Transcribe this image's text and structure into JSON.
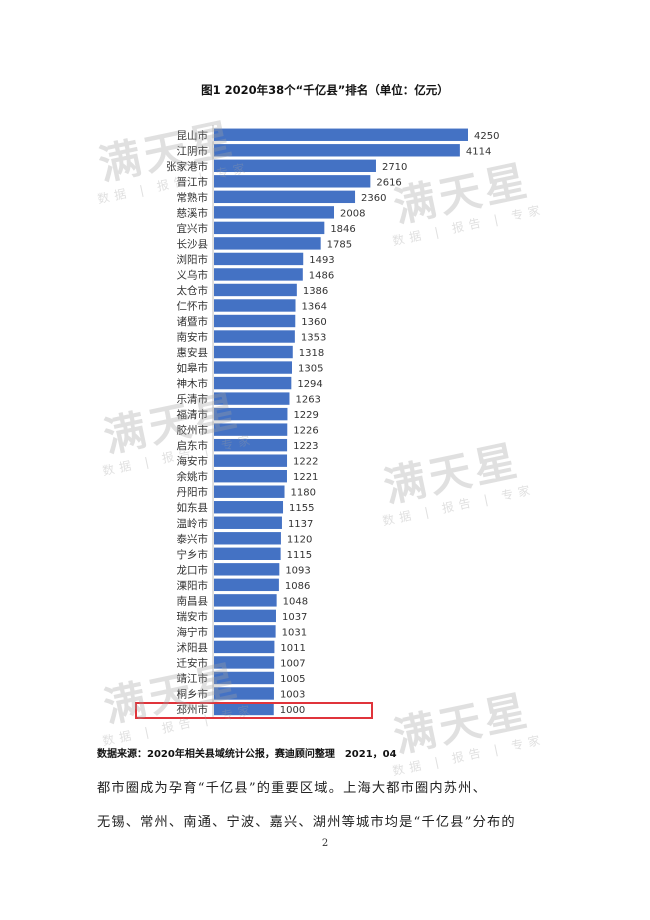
{
  "chart_data": {
    "type": "bar",
    "orientation": "horizontal",
    "title": "图1 2020年38个“千亿县”排名（单位：亿元）",
    "categories": [
      "昆山市",
      "江阴市",
      "张家港市",
      "晋江市",
      "常熟市",
      "慈溪市",
      "宜兴市",
      "长沙县",
      "浏阳市",
      "义乌市",
      "太仓市",
      "仁怀市",
      "诸暨市",
      "南安市",
      "惠安县",
      "如皋市",
      "神木市",
      "乐清市",
      "福清市",
      "胶州市",
      "启东市",
      "海安市",
      "余姚市",
      "丹阳市",
      "如东县",
      "温岭市",
      "泰兴市",
      "宁乡市",
      "龙口市",
      "溧阳市",
      "南昌县",
      "瑞安市",
      "海宁市",
      "沭阳县",
      "迁安市",
      "靖江市",
      "桐乡市",
      "邳州市"
    ],
    "values": [
      4250,
      4114,
      2710,
      2616,
      2360,
      2008,
      1846,
      1785,
      1493,
      1486,
      1386,
      1364,
      1360,
      1353,
      1318,
      1305,
      1294,
      1263,
      1229,
      1226,
      1223,
      1222,
      1221,
      1180,
      1155,
      1137,
      1120,
      1115,
      1093,
      1086,
      1048,
      1037,
      1031,
      1011,
      1007,
      1005,
      1003,
      1000
    ],
    "xlim": [
      0,
      4250
    ],
    "bar_color": "#4472c4",
    "highlighted_category": "邳州市",
    "highlight_color": "#e0343b"
  },
  "source_note": "数据来源：2020年相关县域统计公报，赛迪顾问整理　2021，04",
  "body_lines": [
    "都市圈成为孕育“千亿县”的重要区域。上海大都市圈内苏州、",
    "无锡、常州、南通、宁波、嘉兴、湖州等城市均是“千亿县”分布的"
  ],
  "page_number": "2",
  "watermark": {
    "main": "满天星",
    "sub": "数据 | 报告 | 专家"
  }
}
